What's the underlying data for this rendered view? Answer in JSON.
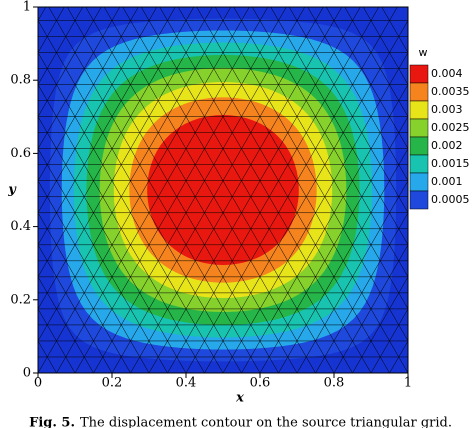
{
  "chart_data": {
    "type": "contour",
    "xlabel": "x",
    "ylabel": "y",
    "xlim": [
      0,
      1
    ],
    "ylim": [
      0,
      1
    ],
    "xticks": [
      0,
      0.2,
      0.4,
      0.6,
      0.8,
      1
    ],
    "yticks": [
      0,
      0.2,
      0.4,
      0.6,
      0.8,
      1
    ],
    "legend_title": "w",
    "levels": [
      0.004,
      0.0035,
      0.003,
      0.0025,
      0.002,
      0.0015,
      0.001,
      0.0005
    ],
    "colors": [
      "#e8170f",
      "#f5841e",
      "#e8e41a",
      "#86d12c",
      "#26b548",
      "#18c4b0",
      "#26a8ea",
      "#1f48dc"
    ],
    "background_color": "#1634d2",
    "mesh": "triangular",
    "figure_label": "Fig. 5.",
    "caption": "The displacement contour on the source triangular grid."
  }
}
